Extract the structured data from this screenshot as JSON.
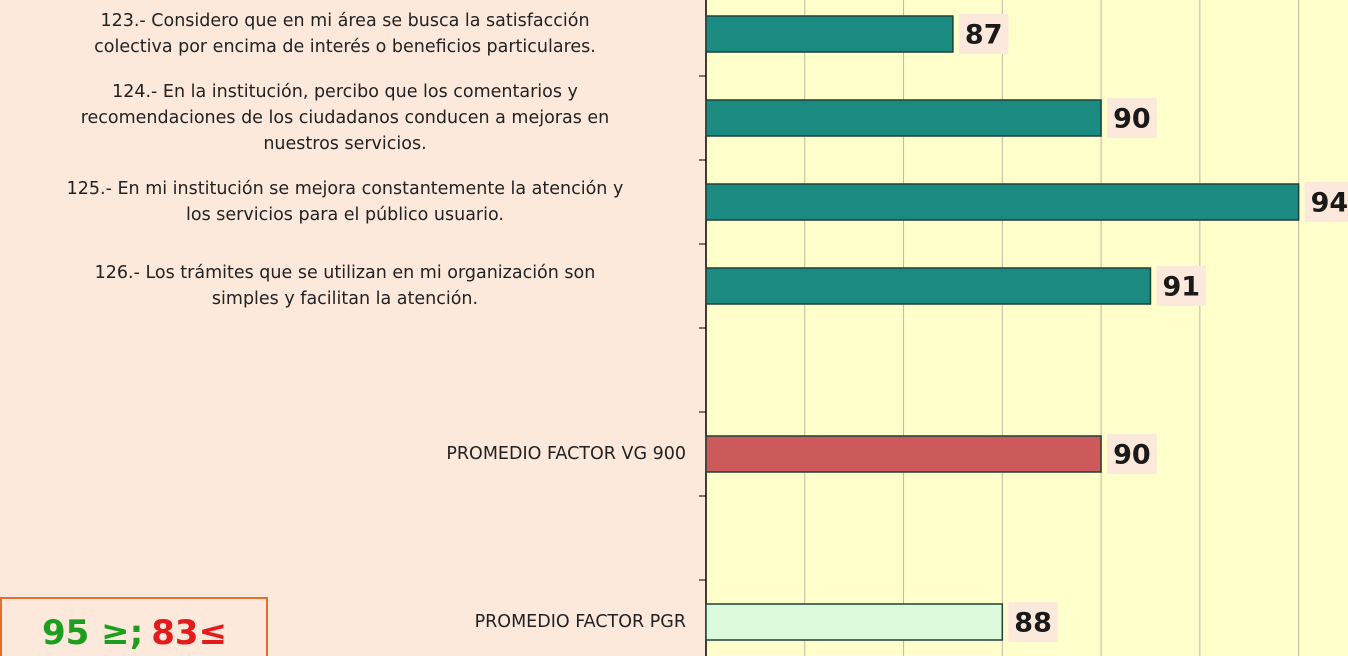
{
  "chart_data": {
    "type": "bar",
    "orientation": "horizontal",
    "categories": [
      "123.- Considero que en mi área se busca la satisfacción\ncolectiva por encima de interés o beneficios particulares.",
      "124.- En la institución, percibo que los comentarios y\nrecomendaciones de los ciudadanos conducen a mejoras en\nnuestros servicios.",
      "125.- En mi institución se mejora constantemente la atención y\nlos servicios para el público usuario.",
      "126.- Los trámites que se utilizan en mi organización son\nsimples y facilitan la atención.",
      null,
      "PROMEDIO FACTOR VG 900",
      null,
      "PROMEDIO FACTOR PGR"
    ],
    "values": [
      87,
      90,
      94,
      91,
      null,
      90,
      null,
      88
    ],
    "colors": [
      "#1b8a80",
      "#1b8a80",
      "#1b8a80",
      "#1b8a80",
      null,
      "#cc5a5a",
      null,
      "#dcfadc"
    ],
    "xlim": [
      82,
      95
    ],
    "xticks": [
      84,
      86,
      88,
      90,
      92,
      94
    ],
    "grid": true,
    "annotations": [
      {
        "text": "95 ≥;",
        "color": "#1e9e1e"
      },
      {
        "text": "83≤",
        "color": "#e31b1b"
      }
    ]
  }
}
